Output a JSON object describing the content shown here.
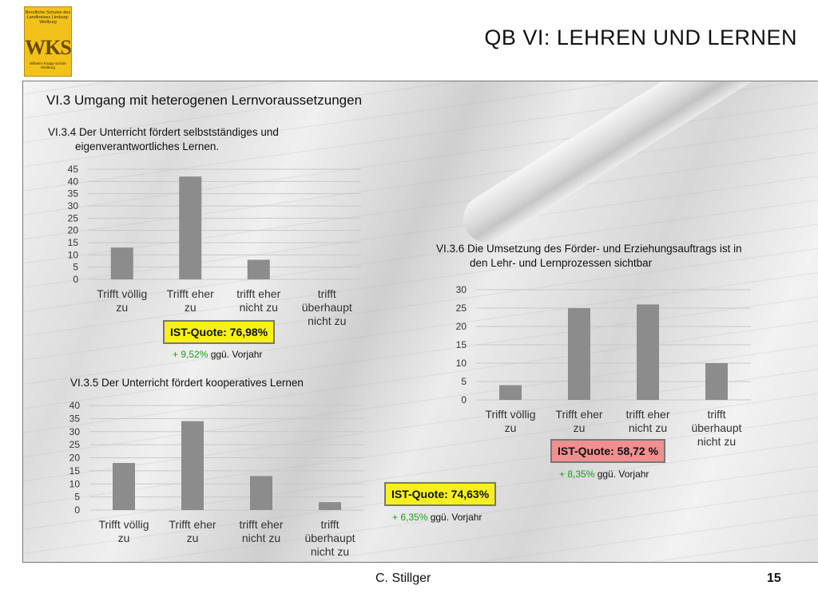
{
  "header": {
    "logo": {
      "line1": "Berufliche Schulen des Landkreises Limburg-Weilburg",
      "mark": "WKS",
      "line2": "Wilhelm-Knapp-Schule Weilburg"
    },
    "title": "QB VI: LEHREN UND LERNEN"
  },
  "section_title": "VI.3 Umgang mit heterogenen Lernvoraussetzungen",
  "chart_data": [
    {
      "type": "bar",
      "title_line1": "VI.3.4 Der Unterricht fördert selbstständiges und",
      "title_line2": "eigenverantwortliches Lernen.",
      "categories": [
        [
          "Trifft völlig",
          "zu"
        ],
        [
          "Trifft eher",
          "zu"
        ],
        [
          "trifft eher",
          "nicht zu"
        ],
        [
          "trifft",
          "überhaupt",
          "nicht zu"
        ]
      ],
      "values": [
        13,
        42,
        8,
        0
      ],
      "ylim": [
        0,
        45
      ],
      "yticks": [
        0,
        5,
        10,
        15,
        20,
        25,
        30,
        35,
        40,
        45
      ],
      "grid": true,
      "bar_color": "#8c8c8c"
    },
    {
      "type": "bar",
      "title_line1": "VI.3.5 Der Unterricht fördert kooperatives Lernen",
      "title_line2": "",
      "categories": [
        [
          "Trifft völlig",
          "zu"
        ],
        [
          "Trifft eher",
          "zu"
        ],
        [
          "trifft eher",
          "nicht zu"
        ],
        [
          "trifft",
          "überhaupt",
          "nicht zu"
        ]
      ],
      "values": [
        18,
        34,
        13,
        3
      ],
      "ylim": [
        0,
        40
      ],
      "yticks": [
        0,
        5,
        10,
        15,
        20,
        25,
        30,
        35,
        40
      ],
      "grid": true,
      "bar_color": "#8c8c8c"
    },
    {
      "type": "bar",
      "title_line1": "VI.3.6 Die Umsetzung des Förder- und Erziehungsauftrags ist in",
      "title_line2": "den Lehr- und Lernprozessen sichtbar",
      "categories": [
        [
          "Trifft völlig",
          "zu"
        ],
        [
          "Trifft eher",
          "zu"
        ],
        [
          "trifft eher",
          "nicht zu"
        ],
        [
          "trifft",
          "überhaupt",
          "nicht zu"
        ]
      ],
      "values": [
        4,
        25,
        26,
        10
      ],
      "ylim": [
        0,
        30
      ],
      "yticks": [
        0,
        5,
        10,
        15,
        20,
        25,
        30
      ],
      "grid": true,
      "bar_color": "#8c8c8c"
    }
  ],
  "quotes": {
    "q1": {
      "label": "IST-Quote: 76,98%",
      "delta": "+ 9,52%",
      "suffix": " ggü. Vorjahr"
    },
    "q2": {
      "label": "IST-Quote: 58,72 %",
      "delta": "+ 8,35%",
      "suffix": " ggü. Vorjahr"
    },
    "q3": {
      "label": "IST-Quote: 74,63%",
      "delta": "+ 6,35%",
      "suffix": " ggü. Vorjahr"
    }
  },
  "colors": {
    "quote_yellow": "#f7f01a",
    "quote_pink": "#f08f8f",
    "delta_green": "#17a317"
  },
  "footer": {
    "author": "C. Stillger",
    "page": "15"
  }
}
